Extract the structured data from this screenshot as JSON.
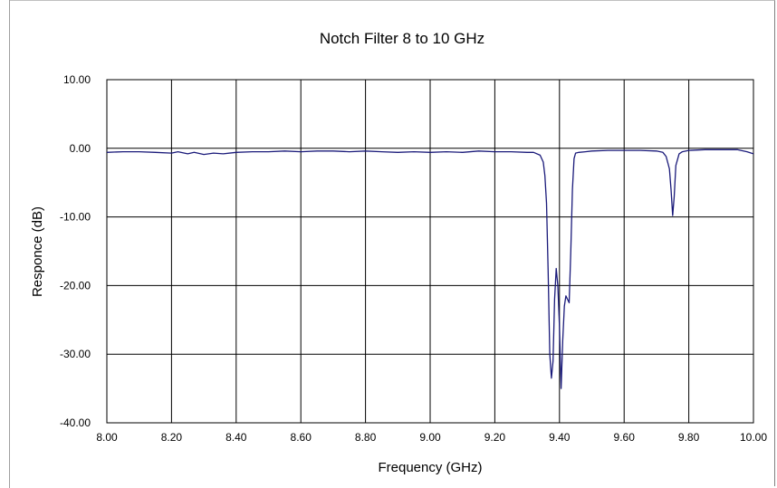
{
  "chart_data": {
    "type": "line",
    "title": "Notch Filter 8 to 10 GHz",
    "xlabel": "Frequency (GHz)",
    "ylabel": "Responce (dB)",
    "xlim": [
      8.0,
      10.0
    ],
    "ylim": [
      -40.0,
      10.0
    ],
    "grid": true,
    "x_ticks": [
      "8.00",
      "8.20",
      "8.40",
      "8.60",
      "8.80",
      "9.00",
      "9.20",
      "9.40",
      "9.60",
      "9.80",
      "10.00"
    ],
    "y_ticks": [
      "10.00",
      "0.00",
      "-10.00",
      "-20.00",
      "-30.00",
      "-40.00"
    ],
    "series": [
      {
        "color": "#1a1a7a",
        "x": [
          8.0,
          8.05,
          8.1,
          8.15,
          8.2,
          8.22,
          8.25,
          8.27,
          8.3,
          8.33,
          8.36,
          8.4,
          8.45,
          8.5,
          8.55,
          8.6,
          8.65,
          8.7,
          8.75,
          8.8,
          8.85,
          8.9,
          8.95,
          9.0,
          9.05,
          9.1,
          9.15,
          9.2,
          9.25,
          9.3,
          9.32,
          9.34,
          9.35,
          9.355,
          9.36,
          9.365,
          9.37,
          9.375,
          9.38,
          9.385,
          9.39,
          9.395,
          9.4,
          9.405,
          9.41,
          9.415,
          9.42,
          9.425,
          9.43,
          9.435,
          9.44,
          9.445,
          9.45,
          9.46,
          9.48,
          9.5,
          9.55,
          9.6,
          9.65,
          9.7,
          9.72,
          9.73,
          9.74,
          9.745,
          9.75,
          9.755,
          9.76,
          9.77,
          9.78,
          9.8,
          9.85,
          9.9,
          9.95,
          9.98,
          10.0
        ],
        "y": [
          -0.6,
          -0.5,
          -0.5,
          -0.6,
          -0.7,
          -0.5,
          -0.8,
          -0.6,
          -0.9,
          -0.7,
          -0.8,
          -0.6,
          -0.5,
          -0.5,
          -0.4,
          -0.5,
          -0.4,
          -0.4,
          -0.5,
          -0.4,
          -0.5,
          -0.6,
          -0.5,
          -0.6,
          -0.5,
          -0.6,
          -0.4,
          -0.5,
          -0.5,
          -0.6,
          -0.6,
          -1.0,
          -2.0,
          -4.0,
          -8.0,
          -18.0,
          -30.0,
          -33.5,
          -31.0,
          -22.0,
          -17.5,
          -20.0,
          -26.0,
          -35.0,
          -28.0,
          -23.0,
          -21.5,
          -22.0,
          -22.5,
          -15.0,
          -6.0,
          -1.5,
          -0.7,
          -0.6,
          -0.5,
          -0.4,
          -0.3,
          -0.3,
          -0.3,
          -0.4,
          -0.6,
          -1.2,
          -3.0,
          -6.0,
          -9.8,
          -7.0,
          -2.5,
          -0.8,
          -0.5,
          -0.3,
          -0.2,
          -0.2,
          -0.2,
          -0.5,
          -0.8
        ]
      }
    ]
  }
}
